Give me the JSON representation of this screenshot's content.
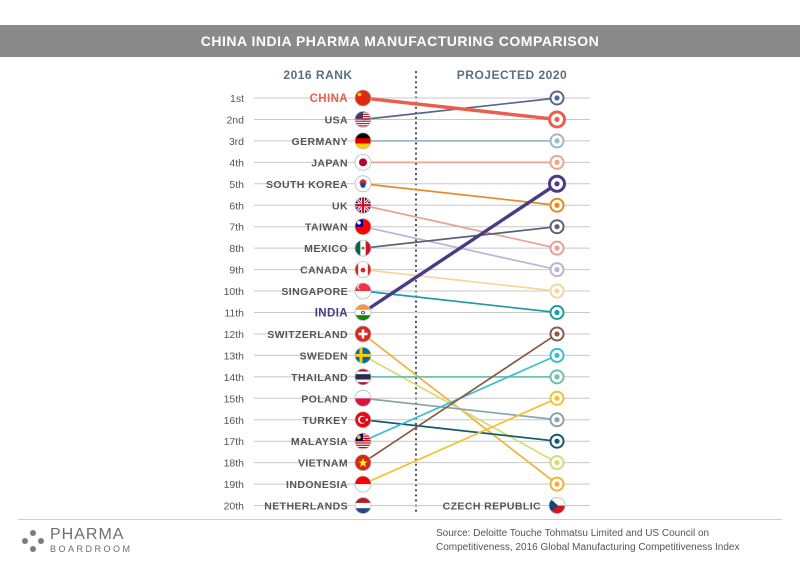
{
  "title": "CHINA INDIA PHARMA MANUFACTURING COMPARISON",
  "chart_data": {
    "type": "slope",
    "left_header": "2016 RANK",
    "right_header": "PROJECTED 2020",
    "ranks": [
      "1st",
      "2nd",
      "3rd",
      "4th",
      "5th",
      "6th",
      "7th",
      "8th",
      "9th",
      "10th",
      "11th",
      "12th",
      "13th",
      "14th",
      "15th",
      "16th",
      "17th",
      "18th",
      "19th",
      "20th"
    ],
    "countries": [
      {
        "name": "CHINA",
        "rank_2016": 1,
        "rank_2020": 2,
        "color": "#e8604c",
        "highlight": true
      },
      {
        "name": "USA",
        "rank_2016": 2,
        "rank_2020": 1,
        "color": "#56668f"
      },
      {
        "name": "GERMANY",
        "rank_2016": 3,
        "rank_2020": 3,
        "color": "#9fb8cc"
      },
      {
        "name": "JAPAN",
        "rank_2016": 4,
        "rank_2020": 4,
        "color": "#f0a48e"
      },
      {
        "name": "SOUTH KOREA",
        "rank_2016": 5,
        "rank_2020": 6,
        "color": "#e58a22"
      },
      {
        "name": "UK",
        "rank_2016": 6,
        "rank_2020": 8,
        "color": "#e89f94"
      },
      {
        "name": "TAIWAN",
        "rank_2016": 7,
        "rank_2020": 9,
        "color": "#bcb3d8"
      },
      {
        "name": "MEXICO",
        "rank_2016": 8,
        "rank_2020": 7,
        "color": "#5b6273"
      },
      {
        "name": "CANADA",
        "rank_2016": 9,
        "rank_2020": 10,
        "color": "#f3d79c"
      },
      {
        "name": "SINGAPORE",
        "rank_2016": 10,
        "rank_2020": 11,
        "color": "#1a9ba6"
      },
      {
        "name": "INDIA",
        "rank_2016": 11,
        "rank_2020": 5,
        "color": "#4a3b86",
        "highlight": true
      },
      {
        "name": "SWITZERLAND",
        "rank_2016": 12,
        "rank_2020": 19,
        "color": "#f0b23a"
      },
      {
        "name": "SWEDEN",
        "rank_2016": 13,
        "rank_2020": 18,
        "color": "#d3dc77"
      },
      {
        "name": "THAILAND",
        "rank_2016": 14,
        "rank_2020": 14,
        "color": "#6cc3a9"
      },
      {
        "name": "POLAND",
        "rank_2016": 15,
        "rank_2020": 16,
        "color": "#8aa2ad"
      },
      {
        "name": "TURKEY",
        "rank_2016": 16,
        "rank_2020": 17,
        "color": "#135a6e"
      },
      {
        "name": "MALAYSIA",
        "rank_2016": 17,
        "rank_2020": 13,
        "color": "#3bbdd3"
      },
      {
        "name": "VIETNAM",
        "rank_2016": 18,
        "rank_2020": 12,
        "color": "#8b5a44"
      },
      {
        "name": "INDONESIA",
        "rank_2016": 19,
        "rank_2020": 15,
        "color": "#f2c230"
      },
      {
        "name": "NETHERLANDS",
        "rank_2016": 20,
        "rank_2020": null,
        "color": "#999999"
      }
    ],
    "new_entry_2020": {
      "name": "CZECH REPUBLIC",
      "rank_2020": 20
    }
  },
  "colors": {
    "china": "#e8604c",
    "india": "#4a3b86",
    "title_bar": "#8a8a8a",
    "header": "#5a6f80",
    "label": "#555555"
  },
  "logo": {
    "main": "PHARMA",
    "sub": "BOARDROOM"
  },
  "source": "Source: Deloitte Touche Tohmatsu Limited and US Council on Competitiveness, 2016 Global Manufacturing Competitiveness Index"
}
